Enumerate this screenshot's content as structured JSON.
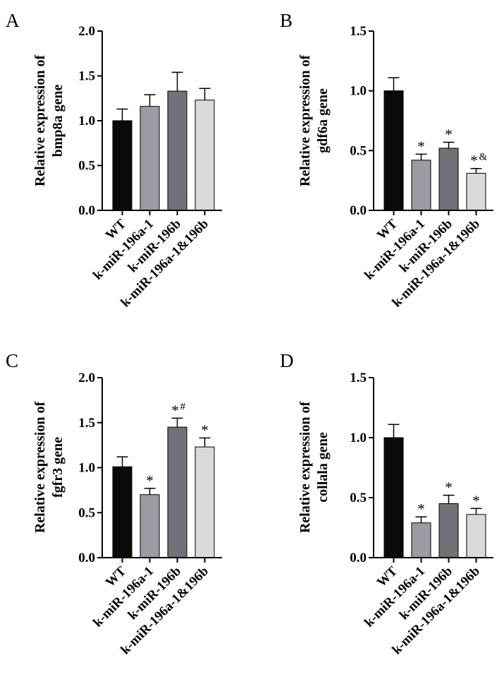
{
  "colors": {
    "wt": "#0a0a0a",
    "k196a1": "#9b9ba3",
    "k196b": "#717178",
    "combo": "#d9dadb",
    "axis": "#000000"
  },
  "chart_data": [
    {
      "panel": "A",
      "type": "bar",
      "ylabel_line1": "Relative expression of",
      "ylabel_line2": "bmp8a gene",
      "ylim": [
        0,
        2.0
      ],
      "yticks": [
        0.0,
        0.5,
        1.0,
        1.5,
        2.0
      ],
      "ytick_labels": [
        "0.0",
        "0.5",
        "1.0",
        "1.5",
        "2.0"
      ],
      "categories": [
        "WT",
        "k-miR-196a-1",
        "k-miR-196b",
        "k-miR-196a-1&196b"
      ],
      "values": [
        1.0,
        1.16,
        1.33,
        1.23
      ],
      "errors": [
        0.13,
        0.13,
        0.21,
        0.13
      ],
      "annotations": [
        "",
        "",
        "",
        ""
      ],
      "annotation_sups": [
        "",
        "",
        "",
        ""
      ]
    },
    {
      "panel": "B",
      "type": "bar",
      "ylabel_line1": "Relative expression of",
      "ylabel_line2": "gdf6a gene",
      "ylim": [
        0,
        1.5
      ],
      "yticks": [
        0.0,
        0.5,
        1.0,
        1.5
      ],
      "ytick_labels": [
        "0.0",
        "0.5",
        "1.0",
        "1.5"
      ],
      "categories": [
        "WT",
        "k-miR-196a-1",
        "k-miR-196b",
        "k-miR-196a-1&196b"
      ],
      "values": [
        1.0,
        0.42,
        0.52,
        0.31
      ],
      "errors": [
        0.11,
        0.05,
        0.05,
        0.04
      ],
      "annotations": [
        "",
        "*",
        "*",
        "*"
      ],
      "annotation_sups": [
        "",
        "",
        "",
        "&"
      ]
    },
    {
      "panel": "C",
      "type": "bar",
      "ylabel_line1": "Relative expression of",
      "ylabel_line2": "fgfr3 gene",
      "ylim": [
        0,
        2.0
      ],
      "yticks": [
        0.0,
        0.5,
        1.0,
        1.5,
        2.0
      ],
      "ytick_labels": [
        "0.0",
        "0.5",
        "1.0",
        "1.5",
        "2.0"
      ],
      "categories": [
        "WT",
        "k-miR-196a-1",
        "k-miR-196b",
        "k-miR-196a-1&196b"
      ],
      "values": [
        1.01,
        0.7,
        1.45,
        1.23
      ],
      "errors": [
        0.11,
        0.07,
        0.1,
        0.1
      ],
      "annotations": [
        "",
        "*",
        "*",
        "*"
      ],
      "annotation_sups": [
        "",
        "",
        "#",
        ""
      ]
    },
    {
      "panel": "D",
      "type": "bar",
      "ylabel_line1": "Relative expression of",
      "ylabel_line2": "collala gene",
      "ylim": [
        0,
        1.5
      ],
      "yticks": [
        0.0,
        0.5,
        1.0,
        1.5
      ],
      "ytick_labels": [
        "0.0",
        "0.5",
        "1.0",
        "1.5"
      ],
      "categories": [
        "WT",
        "k-miR-196a-1",
        "k-miR-196b",
        "k-miR-196a-1&196b"
      ],
      "values": [
        1.0,
        0.29,
        0.45,
        0.36
      ],
      "errors": [
        0.11,
        0.05,
        0.07,
        0.05
      ],
      "annotations": [
        "",
        "*",
        "*",
        "*"
      ],
      "annotation_sups": [
        "",
        "",
        "",
        ""
      ]
    }
  ]
}
